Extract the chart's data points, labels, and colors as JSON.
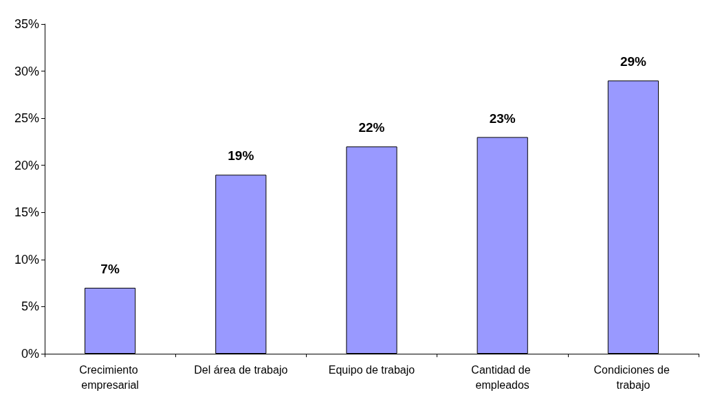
{
  "chart_data": {
    "type": "bar",
    "categories": [
      "Crecimiento empresarial",
      "Del área de trabajo",
      "Equipo de trabajo",
      "Cantidad de empleados",
      "Condiciones de trabajo"
    ],
    "values": [
      7,
      19,
      22,
      23,
      29
    ],
    "value_labels": [
      "7%",
      "19%",
      "22%",
      "23%",
      "29%"
    ],
    "color": "#9999ff",
    "ylim": [
      0,
      35
    ],
    "yticks": [
      {
        "value": 0,
        "label": "0%"
      },
      {
        "value": 5,
        "label": "5%"
      },
      {
        "value": 10,
        "label": "10%"
      },
      {
        "value": 15,
        "label": "15%"
      },
      {
        "value": 20,
        "label": "20%"
      },
      {
        "value": 25,
        "label": "25%"
      },
      {
        "value": 30,
        "label": "30%"
      },
      {
        "value": 35,
        "label": "35%"
      }
    ],
    "grid": false
  }
}
